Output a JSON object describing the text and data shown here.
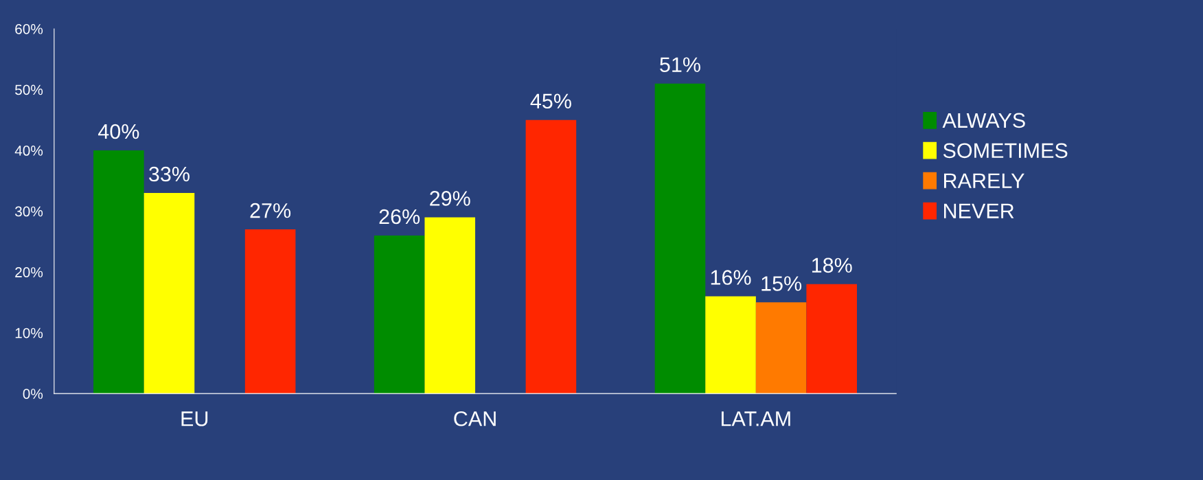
{
  "chart_data": {
    "type": "bar",
    "categories": [
      "EU",
      "CAN",
      "LAT.AM"
    ],
    "series": [
      {
        "name": "ALWAYS",
        "color": "#008c00",
        "values": [
          40,
          26,
          51
        ],
        "value_labels": [
          "40%",
          "26%",
          "51%"
        ]
      },
      {
        "name": "SOMETIMES",
        "color": "#ffff00",
        "values": [
          33,
          29,
          16
        ],
        "value_labels": [
          "33%",
          "29%",
          "16%"
        ]
      },
      {
        "name": "RARELY",
        "color": "#ff7a00",
        "values": [
          null,
          null,
          15
        ],
        "value_labels": [
          null,
          null,
          "15%"
        ]
      },
      {
        "name": "NEVER",
        "color": "#ff2600",
        "values": [
          27,
          45,
          18
        ],
        "value_labels": [
          "27%",
          "45%",
          "18%"
        ]
      }
    ],
    "ylim": [
      0,
      60
    ],
    "yticks": [
      {
        "value": 0,
        "label": "0%"
      },
      {
        "value": 10,
        "label": "10%"
      },
      {
        "value": 20,
        "label": "20%"
      },
      {
        "value": 30,
        "label": "30%"
      },
      {
        "value": 40,
        "label": "40%"
      },
      {
        "value": 50,
        "label": "50%"
      },
      {
        "value": 60,
        "label": "60%"
      }
    ],
    "grid": false,
    "legend": "right"
  }
}
